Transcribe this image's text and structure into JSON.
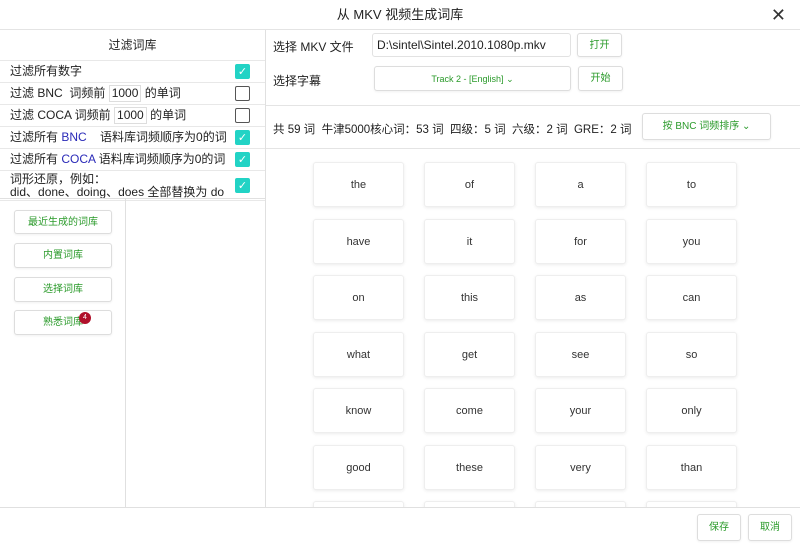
{
  "window": {
    "title": "从 MKV 视频生成词库",
    "close_icon": "close-icon"
  },
  "filters": {
    "heading": "过滤词库",
    "items": [
      {
        "label": "过滤所有数字",
        "checked": true
      },
      {
        "prefix": "过滤 BNC  词频前",
        "value": "1000",
        "suffix": "的单词",
        "checked": false
      },
      {
        "prefix": "过滤 COCA 词频前",
        "value": "1000",
        "suffix": "的单词",
        "checked": false
      },
      {
        "prefix": "过滤所有",
        "corpus": "BNC",
        "suffix": "语料库词频顺序为0的词",
        "checked": true
      },
      {
        "prefix": "过滤所有",
        "corpus": "COCA",
        "suffix": "语料库词频顺序为0的词",
        "checked": true
      },
      {
        "line1": "词形还原，例如：",
        "line2": "did、done、doing、does 全部替换为 do",
        "checked": true
      }
    ]
  },
  "library_buttons": [
    {
      "label": "最近生成的词库"
    },
    {
      "label": "内置词库"
    },
    {
      "label": "选择词库"
    },
    {
      "label": "熟悉词库",
      "badge": "4"
    }
  ],
  "file": {
    "label": "选择 MKV 文件",
    "value": "D:\\sintel\\Sintel.2010.1080p.mkv",
    "open_label": "打开"
  },
  "subtitle": {
    "label": "选择字幕",
    "selected": "Track 2 - [English]",
    "start_label": "开始"
  },
  "stats": {
    "text": "共 59 词  牛津5000核心词：53 词  四级：5 词  六级：2 词  GRE：2 词",
    "sort_selected": "按 BNC 词频排序"
  },
  "words": [
    "the",
    "of",
    "a",
    "to",
    "have",
    "it",
    "for",
    "you",
    "on",
    "this",
    "as",
    "can",
    "what",
    "get",
    "see",
    "so",
    "know",
    "come",
    "your",
    "only",
    "good",
    "these",
    "very",
    "than"
  ],
  "footer": {
    "save_label": "保存",
    "cancel_label": "取消"
  },
  "colors": {
    "accent": "#2a9a2a",
    "checkbox": "#22d3c5",
    "badge": "#b0102a",
    "corpus": "#2a2ab8"
  }
}
